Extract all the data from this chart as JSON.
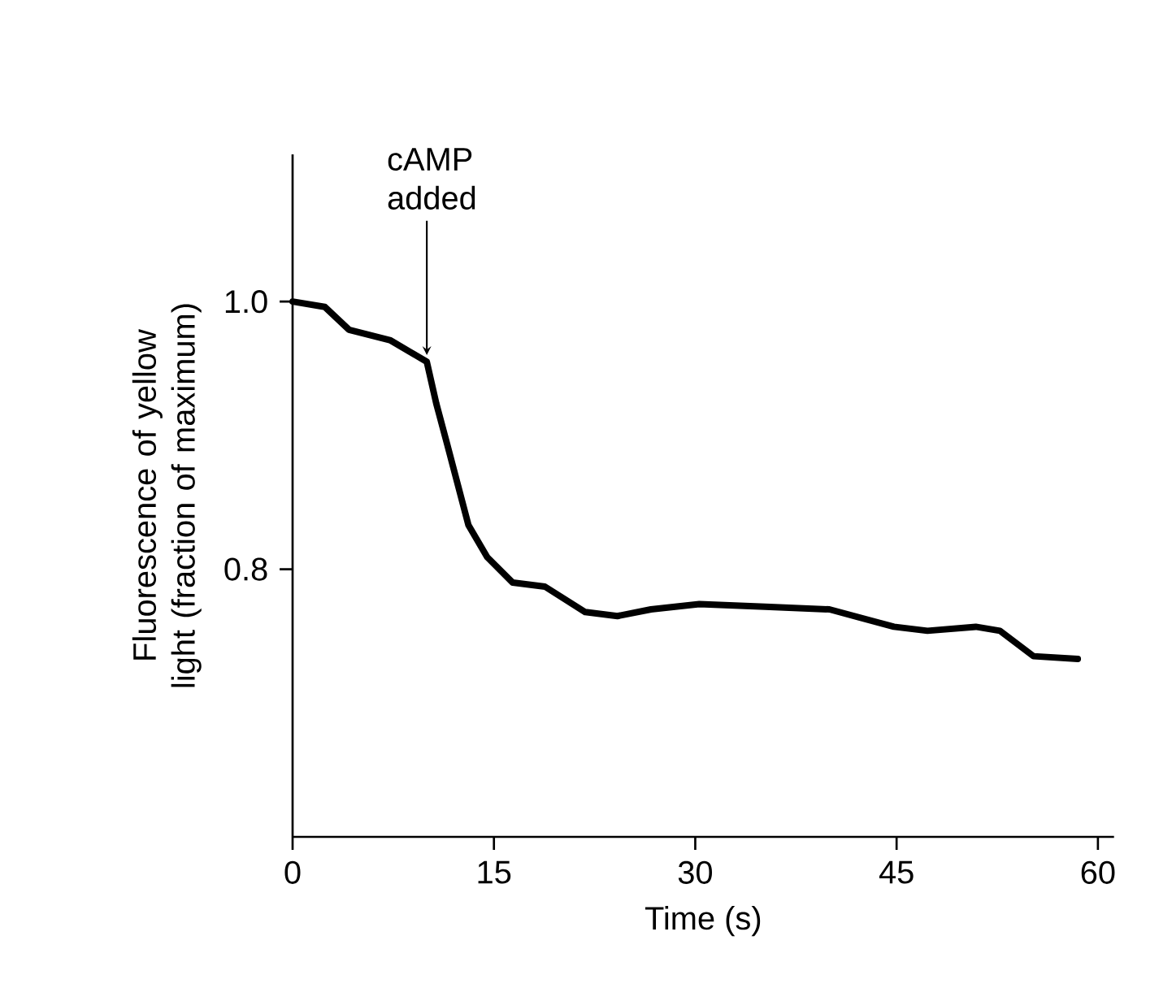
{
  "chart_data": {
    "type": "line",
    "xlabel": "Time (s)",
    "ylabel": "Fluorescence of yellow light (fraction of maximum)",
    "x": [
      0,
      2.4,
      4.2,
      7.3,
      10,
      10.7,
      11.5,
      13.1,
      14.5,
      16.4,
      18.8,
      21.8,
      24.2,
      26.7,
      30.3,
      35.2,
      40,
      44.8,
      47.3,
      50.9,
      52.7,
      55.2,
      58.5
    ],
    "values": [
      1.0,
      0.996,
      0.979,
      0.971,
      0.955,
      0.924,
      0.894,
      0.833,
      0.809,
      0.79,
      0.787,
      0.768,
      0.765,
      0.77,
      0.774,
      0.772,
      0.77,
      0.757,
      0.754,
      0.757,
      0.754,
      0.735,
      0.733
    ],
    "color": "#000000",
    "xlim": [
      0,
      61.2
    ],
    "ylim": [
      0.6,
      1.11
    ],
    "xticks": [
      0,
      15,
      30,
      45,
      60
    ],
    "yticks": [
      {
        "value": 0.8,
        "label": "0.8"
      },
      {
        "value": 1.0,
        "label": "1.0"
      }
    ],
    "annotations": [
      {
        "text": "cAMP added",
        "x": 10,
        "y": 0.96
      }
    ],
    "grid": false,
    "marker": "none",
    "line_style": "solid"
  }
}
